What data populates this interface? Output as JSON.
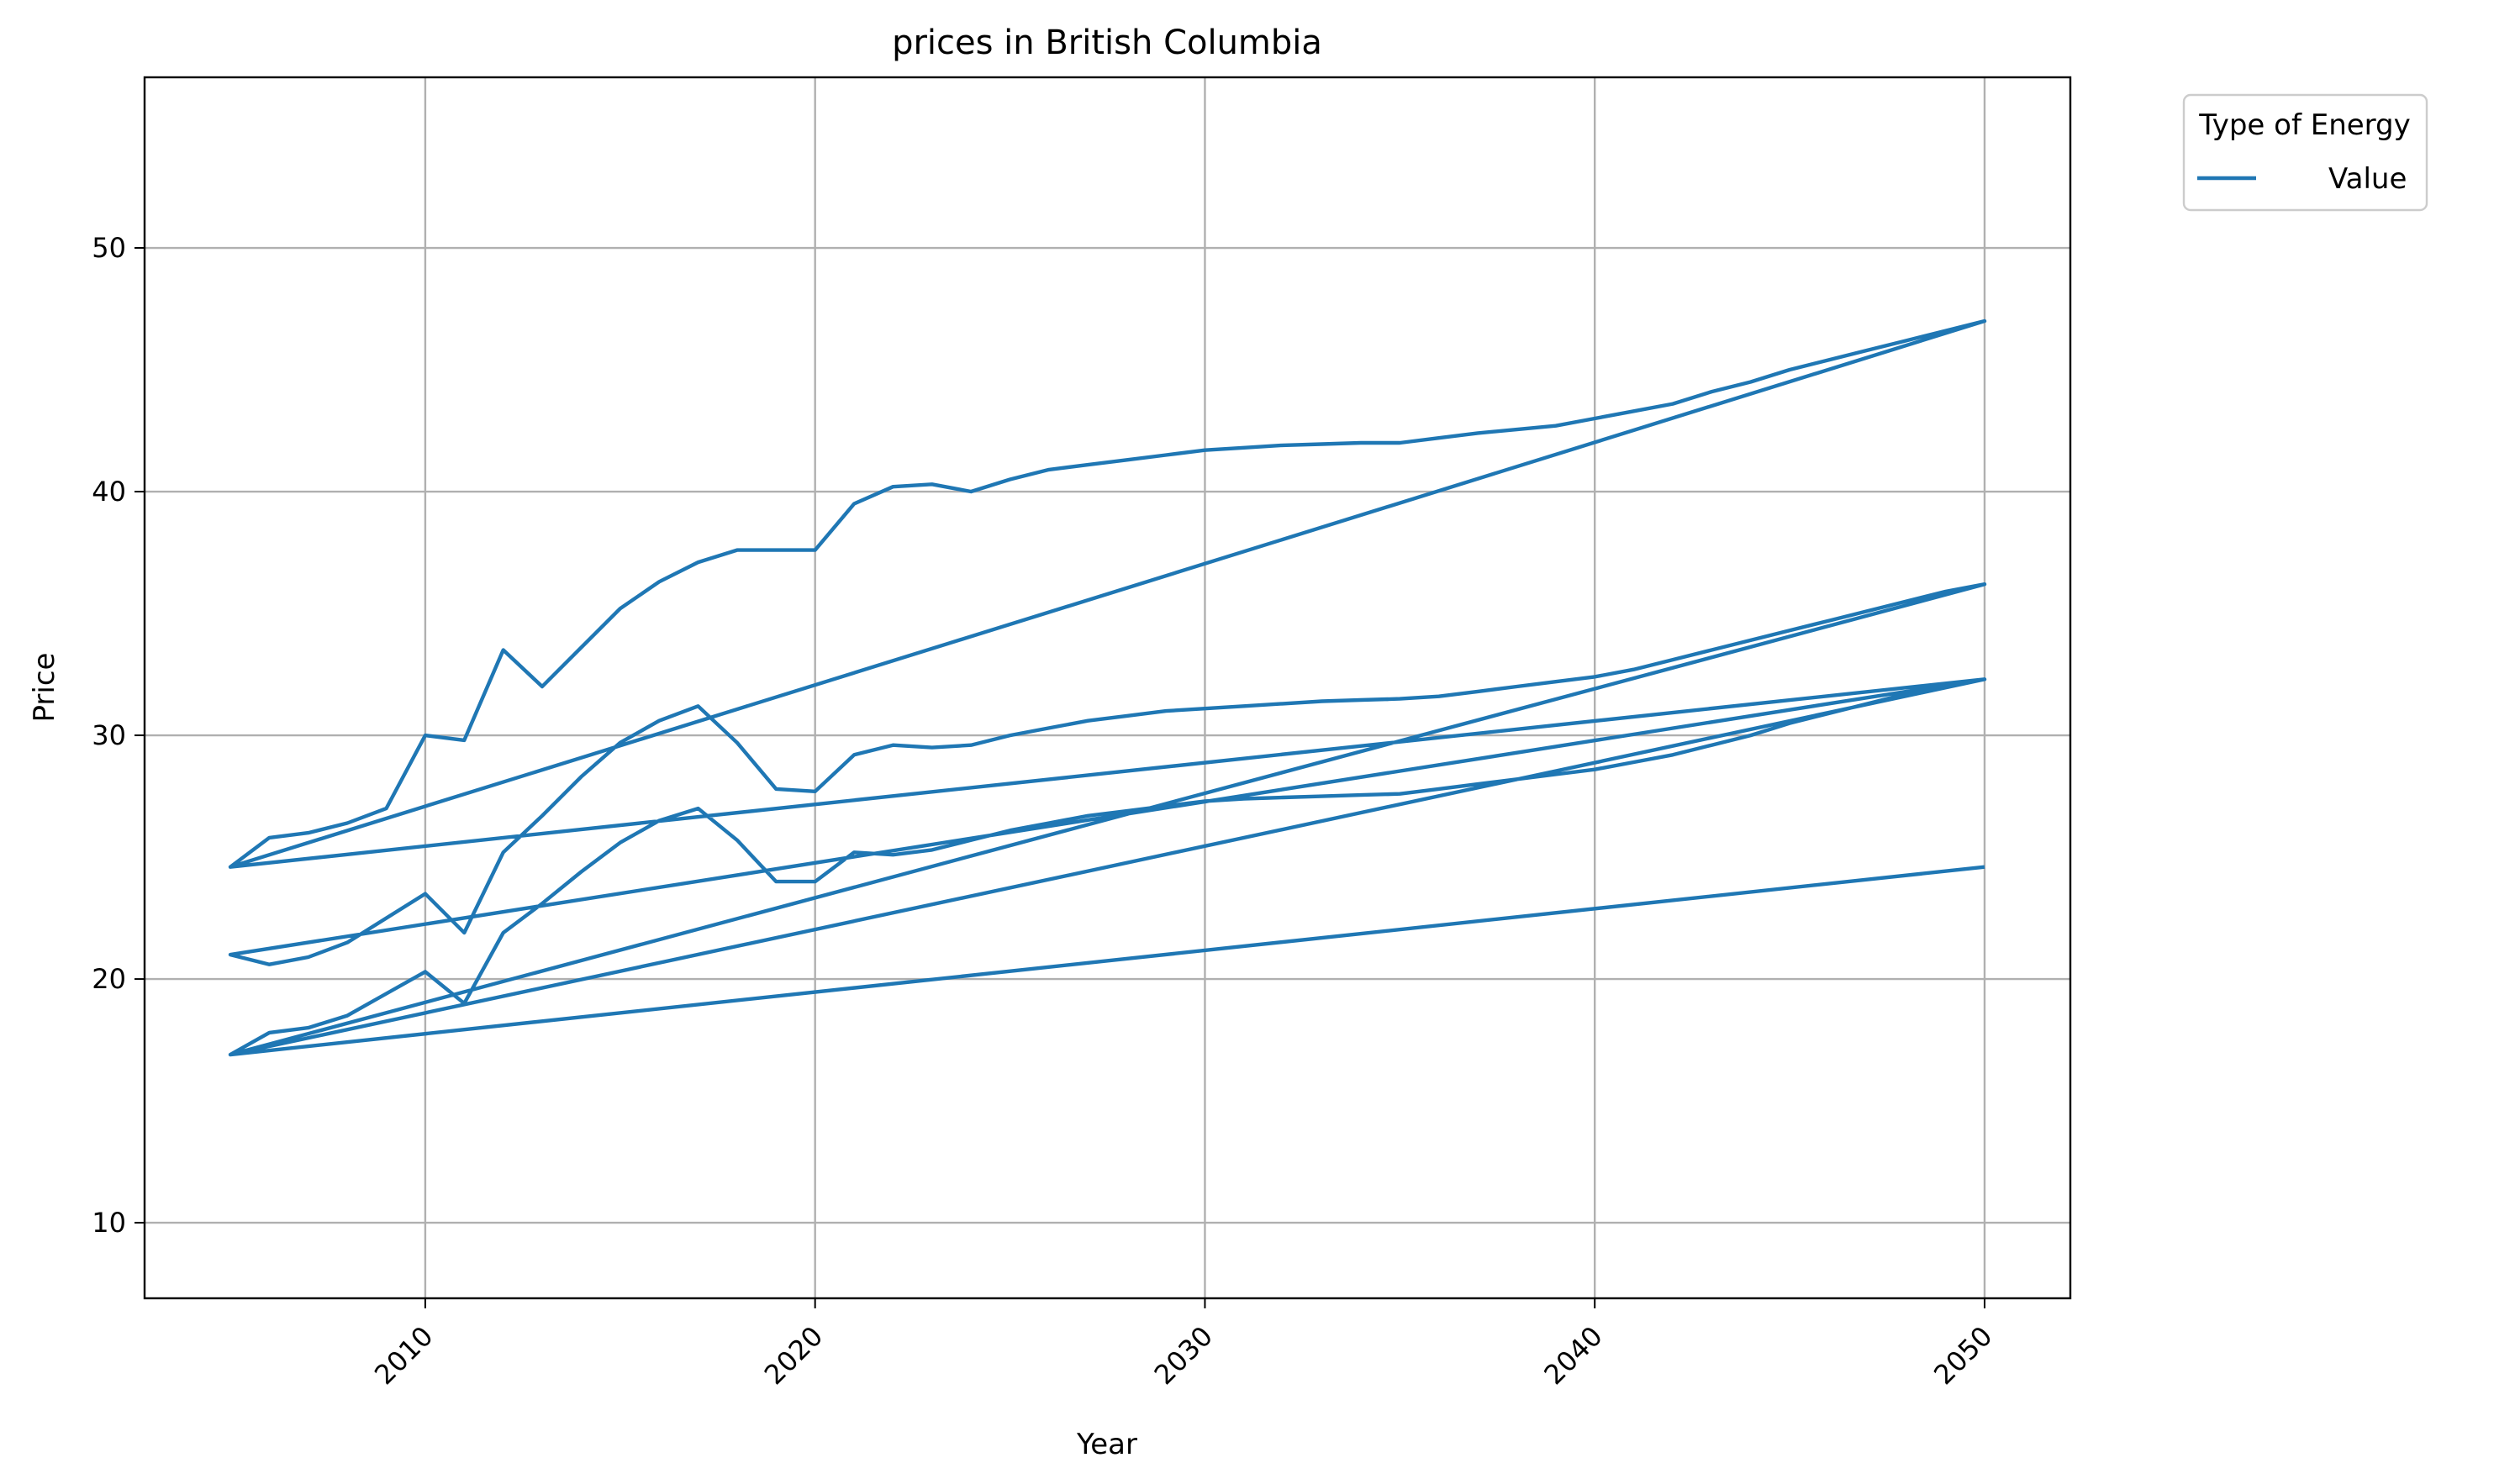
{
  "chart_data": {
    "type": "line",
    "title": "prices in British Columbia",
    "xlabel": "Year",
    "ylabel": "Price",
    "xlim": [
      2002.8,
      2052.2
    ],
    "ylim": [
      6.9,
      57
    ],
    "xticks": [
      2010,
      2020,
      2030,
      2040,
      2050
    ],
    "yticks": [
      10,
      20,
      30,
      40,
      50
    ],
    "grid": true,
    "legend": {
      "title": "Type of Energy",
      "placement": "outside-top-right"
    },
    "colors": {
      "series": "#1f77b4",
      "grid": "#b0b0b0",
      "frame": "#000000"
    },
    "series": [
      {
        "name": "Value",
        "x": [
          2005,
          2006,
          2007,
          2008,
          2009,
          2010,
          2011,
          2012,
          2013,
          2014,
          2015,
          2016,
          2017,
          2018,
          2019,
          2020,
          2021,
          2022,
          2023,
          2024,
          2025,
          2026,
          2027,
          2028,
          2029,
          2030,
          2031,
          2032,
          2033,
          2034,
          2035,
          2036,
          2037,
          2038,
          2039,
          2040,
          2041,
          2042,
          2043,
          2044,
          2045,
          2046,
          2047,
          2048,
          2049,
          2050,
          2005,
          2050,
          2005,
          2006,
          2007,
          2008,
          2009,
          2010,
          2011,
          2012,
          2013,
          2014,
          2015,
          2016,
          2017,
          2018,
          2019,
          2020,
          2021,
          2022,
          2023,
          2024,
          2025,
          2026,
          2027,
          2028,
          2029,
          2030,
          2031,
          2032,
          2033,
          2034,
          2035,
          2036,
          2037,
          2038,
          2039,
          2040,
          2041,
          2042,
          2043,
          2044,
          2045,
          2046,
          2047,
          2048,
          2049,
          2050,
          2005,
          2050,
          2005,
          2006,
          2007,
          2008,
          2009,
          2010,
          2011,
          2012,
          2013,
          2014,
          2015,
          2016,
          2017,
          2018,
          2019,
          2020,
          2021,
          2022,
          2023,
          2024,
          2025,
          2026,
          2027,
          2028,
          2029,
          2030,
          2031,
          2032,
          2033,
          2034,
          2035,
          2036,
          2037,
          2038,
          2039,
          2040,
          2041,
          2042,
          2043,
          2044,
          2045,
          2046,
          2047,
          2048,
          2049,
          2050,
          2005,
          2050
        ],
        "y": [
          24.6,
          25.8,
          26.0,
          26.4,
          27.0,
          30.0,
          29.8,
          33.5,
          32.0,
          33.6,
          35.2,
          36.3,
          37.1,
          37.6,
          37.6,
          37.6,
          39.5,
          40.2,
          40.3,
          40.0,
          40.5,
          40.9,
          41.1,
          41.3,
          41.5,
          41.7,
          41.8,
          41.9,
          41.95,
          42.0,
          42.0,
          42.2,
          42.4,
          42.55,
          42.7,
          43.0,
          43.3,
          43.6,
          44.1,
          44.5,
          45.0,
          45.4,
          45.8,
          46.2,
          46.6,
          47.0,
          24.6,
          32.3,
          21.0,
          20.6,
          20.9,
          21.5,
          22.5,
          23.5,
          21.9,
          25.2,
          26.7,
          28.3,
          29.7,
          30.6,
          31.2,
          29.7,
          27.8,
          27.7,
          29.2,
          29.6,
          29.5,
          29.6,
          30.0,
          30.3,
          30.6,
          30.8,
          31.0,
          31.1,
          31.2,
          31.3,
          31.4,
          31.45,
          31.5,
          31.6,
          31.8,
          32.0,
          32.2,
          32.4,
          32.7,
          33.1,
          33.5,
          33.9,
          34.3,
          34.7,
          35.1,
          35.5,
          35.9,
          36.2,
          16.9,
          36.2,
          16.9,
          17.8,
          18.0,
          18.5,
          19.4,
          20.3,
          19.0,
          21.9,
          23.1,
          24.4,
          25.6,
          26.5,
          27.0,
          25.7,
          24.0,
          24.0,
          25.2,
          25.1,
          25.3,
          25.7,
          26.1,
          26.4,
          26.7,
          26.9,
          27.1,
          27.3,
          27.4,
          27.45,
          27.5,
          27.55,
          27.6,
          27.8,
          28.0,
          28.2,
          28.4,
          28.6,
          28.9,
          29.2,
          29.6,
          30.0,
          30.5,
          30.9,
          31.3,
          31.7,
          32.0,
          32.3,
          16.9,
          24.6
        ]
      }
    ]
  }
}
